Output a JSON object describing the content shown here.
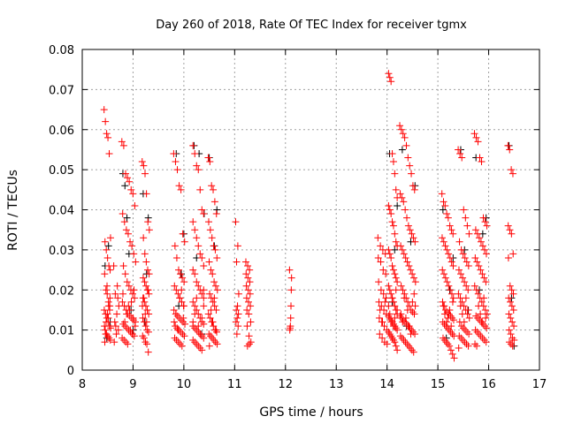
{
  "chart_data": {
    "type": "scatter",
    "title": "Day 260 of 2018, Rate Of TEC Index for receiver tgmx",
    "xlabel": "GPS time / hours",
    "ylabel": "ROTI / TECUs",
    "xlim": [
      8,
      17
    ],
    "ylim": [
      0,
      0.08
    ],
    "xticks": [
      "8",
      "9",
      "10",
      "11",
      "12",
      "13",
      "14",
      "15",
      "16",
      "17"
    ],
    "yticks": [
      "0",
      "0.01",
      "0.02",
      "0.03",
      "0.04",
      "0.05",
      "0.06",
      "0.07",
      "0.08"
    ],
    "grid": true,
    "marker": "+",
    "series": [
      {
        "name": "black",
        "color": "#000000",
        "arcs": [
          {
            "x0": 8.45,
            "x1": 8.55,
            "y": [
              0.026,
              0.012,
              0.031,
              0.008
            ]
          },
          {
            "x0": 8.8,
            "x1": 9.0,
            "y": [
              0.049,
              0.046,
              0.038,
              0.029,
              0.015,
              0.01
            ]
          },
          {
            "x0": 9.2,
            "x1": 9.3,
            "y": [
              0.044,
              0.038,
              0.024,
              0.012
            ]
          },
          {
            "x0": 9.85,
            "x1": 10.0,
            "y": [
              0.054,
              0.034,
              0.024,
              0.016
            ]
          },
          {
            "x0": 10.2,
            "x1": 10.4,
            "y": [
              0.056,
              0.054,
              0.039,
              0.028,
              0.009
            ]
          },
          {
            "x0": 10.5,
            "x1": 10.65,
            "y": [
              0.053,
              0.04,
              0.031,
              0.012
            ]
          },
          {
            "x0": 14.05,
            "x1": 14.2,
            "y": [
              0.054,
              0.041,
              0.03,
              0.017
            ]
          },
          {
            "x0": 14.3,
            "x1": 14.55,
            "y": [
              0.055,
              0.046,
              0.032,
              0.011
            ]
          },
          {
            "x0": 15.1,
            "x1": 15.3,
            "y": [
              0.04,
              0.028,
              0.02,
              0.008
            ]
          },
          {
            "x0": 15.45,
            "x1": 15.6,
            "y": [
              0.055,
              0.03,
              0.015
            ]
          },
          {
            "x0": 15.75,
            "x1": 15.95,
            "y": [
              0.053,
              0.038,
              0.034,
              0.02
            ]
          },
          {
            "x0": 16.4,
            "x1": 16.5,
            "y": [
              0.056,
              0.018,
              0.006
            ]
          }
        ]
      },
      {
        "name": "red",
        "color": "#ff0000",
        "arcs": [
          {
            "x0": 8.43,
            "x1": 8.56,
            "y": [
              0.065,
              0.062,
              0.059,
              0.058,
              0.054,
              0.033,
              0.032,
              0.03,
              0.028,
              0.026,
              0.025,
              0.024,
              0.02,
              0.019,
              0.017,
              0.016,
              0.015,
              0.014,
              0.013,
              0.012,
              0.011,
              0.0105,
              0.01,
              0.009,
              0.0085,
              0.008,
              0.0075,
              0.007,
              0.012,
              0.014,
              0.016,
              0.018,
              0.011,
              0.009,
              0.021,
              0.013,
              0.015
            ]
          },
          {
            "x0": 8.62,
            "x1": 8.72,
            "y": [
              0.026,
              0.021,
              0.019,
              0.016,
              0.014,
              0.012,
              0.01,
              0.009,
              0.007,
              0.018,
              0.011
            ]
          },
          {
            "x0": 8.78,
            "x1": 9.05,
            "y": [
              0.057,
              0.056,
              0.049,
              0.048,
              0.047,
              0.045,
              0.044,
              0.041,
              0.039,
              0.037,
              0.035,
              0.034,
              0.032,
              0.031,
              0.029,
              0.027,
              0.026,
              0.024,
              0.022,
              0.021,
              0.02,
              0.019,
              0.018,
              0.017,
              0.016,
              0.015,
              0.014,
              0.0135,
              0.013,
              0.0125,
              0.012,
              0.0115,
              0.011,
              0.0105,
              0.01,
              0.0095,
              0.009,
              0.0085,
              0.008,
              0.0075,
              0.007,
              0.0065,
              0.015,
              0.017,
              0.013,
              0.011,
              0.019,
              0.012,
              0.014,
              0.016,
              0.01,
              0.009,
              0.02
            ]
          },
          {
            "x0": 9.18,
            "x1": 9.32,
            "y": [
              0.052,
              0.051,
              0.049,
              0.044,
              0.037,
              0.035,
              0.033,
              0.029,
              0.027,
              0.025,
              0.024,
              0.023,
              0.022,
              0.021,
              0.02,
              0.019,
              0.018,
              0.017,
              0.016,
              0.015,
              0.014,
              0.013,
              0.012,
              0.011,
              0.01,
              0.0095,
              0.0085,
              0.008,
              0.007,
              0.0065,
              0.0045,
              0.016,
              0.018,
              0.014,
              0.012,
              0.02
            ]
          },
          {
            "x0": 9.8,
            "x1": 10.02,
            "y": [
              0.054,
              0.052,
              0.05,
              0.046,
              0.045,
              0.034,
              0.032,
              0.031,
              0.028,
              0.025,
              0.024,
              0.023,
              0.022,
              0.021,
              0.02,
              0.019,
              0.018,
              0.017,
              0.016,
              0.015,
              0.014,
              0.0135,
              0.013,
              0.0125,
              0.012,
              0.0115,
              0.011,
              0.0105,
              0.01,
              0.0095,
              0.009,
              0.0085,
              0.008,
              0.0075,
              0.007,
              0.0065,
              0.006,
              0.016,
              0.012,
              0.014,
              0.01,
              0.018,
              0.02,
              0.013
            ]
          },
          {
            "x0": 10.18,
            "x1": 10.42,
            "y": [
              0.056,
              0.054,
              0.051,
              0.05,
              0.045,
              0.04,
              0.039,
              0.037,
              0.035,
              0.033,
              0.031,
              0.029,
              0.028,
              0.026,
              0.025,
              0.024,
              0.022,
              0.021,
              0.02,
              0.019,
              0.018,
              0.017,
              0.016,
              0.015,
              0.014,
              0.013,
              0.012,
              0.0115,
              0.011,
              0.0105,
              0.01,
              0.0095,
              0.009,
              0.0085,
              0.008,
              0.0075,
              0.007,
              0.0065,
              0.006,
              0.0055,
              0.005,
              0.016,
              0.012,
              0.014,
              0.018,
              0.011,
              0.009,
              0.013,
              0.02
            ]
          },
          {
            "x0": 10.48,
            "x1": 10.66,
            "y": [
              0.053,
              0.052,
              0.046,
              0.045,
              0.042,
              0.039,
              0.037,
              0.035,
              0.033,
              0.031,
              0.03,
              0.028,
              0.027,
              0.025,
              0.024,
              0.022,
              0.021,
              0.02,
              0.019,
              0.018,
              0.017,
              0.016,
              0.015,
              0.014,
              0.013,
              0.012,
              0.011,
              0.01,
              0.0095,
              0.009,
              0.0085,
              0.008,
              0.0075,
              0.007,
              0.0065,
              0.006,
              0.015,
              0.012,
              0.018,
              0.01
            ]
          },
          {
            "x0": 11.02,
            "x1": 11.08,
            "y": [
              0.037,
              0.031,
              0.027,
              0.019,
              0.016,
              0.015,
              0.014,
              0.013,
              0.012,
              0.011,
              0.009
            ]
          },
          {
            "x0": 11.22,
            "x1": 11.32,
            "y": [
              0.027,
              0.026,
              0.025,
              0.024,
              0.023,
              0.022,
              0.021,
              0.02,
              0.019,
              0.018,
              0.017,
              0.016,
              0.015,
              0.014,
              0.012,
              0.011,
              0.0085,
              0.007,
              0.006,
              0.0065
            ]
          },
          {
            "x0": 12.08,
            "x1": 12.12,
            "y": [
              0.025,
              0.023,
              0.02,
              0.016,
              0.013,
              0.011,
              0.0105,
              0.01
            ]
          },
          {
            "x0": 13.82,
            "x1": 14.0,
            "y": [
              0.033,
              0.031,
              0.03,
              0.029,
              0.028,
              0.027,
              0.025,
              0.024,
              0.022,
              0.02,
              0.019,
              0.018,
              0.017,
              0.016,
              0.015,
              0.014,
              0.013,
              0.012,
              0.011,
              0.01,
              0.009,
              0.008,
              0.007,
              0.0065,
              0.015,
              0.012,
              0.017
            ]
          },
          {
            "x0": 14.03,
            "x1": 14.22,
            "y": [
              0.074,
              0.073,
              0.072,
              0.054,
              0.052,
              0.049,
              0.045,
              0.043,
              0.041,
              0.04,
              0.039,
              0.037,
              0.036,
              0.034,
              0.032,
              0.031,
              0.03,
              0.029,
              0.028,
              0.026,
              0.025,
              0.024,
              0.023,
              0.022,
              0.021,
              0.02,
              0.019,
              0.018,
              0.017,
              0.016,
              0.015,
              0.014,
              0.0135,
              0.013,
              0.0125,
              0.012,
              0.0115,
              0.011,
              0.0105,
              0.01,
              0.0095,
              0.009,
              0.0085,
              0.008,
              0.0075,
              0.007,
              0.006,
              0.005,
              0.016,
              0.014,
              0.012,
              0.018,
              0.011,
              0.013,
              0.02,
              0.015
            ]
          },
          {
            "x0": 14.25,
            "x1": 14.56,
            "y": [
              0.061,
              0.06,
              0.059,
              0.058,
              0.056,
              0.053,
              0.051,
              0.049,
              0.046,
              0.045,
              0.044,
              0.043,
              0.042,
              0.04,
              0.038,
              0.036,
              0.035,
              0.034,
              0.033,
              0.032,
              0.031,
              0.03,
              0.029,
              0.028,
              0.027,
              0.026,
              0.025,
              0.024,
              0.023,
              0.022,
              0.021,
              0.02,
              0.019,
              0.018,
              0.017,
              0.016,
              0.015,
              0.0145,
              0.014,
              0.0135,
              0.013,
              0.0125,
              0.012,
              0.0115,
              0.011,
              0.0105,
              0.01,
              0.0095,
              0.009,
              0.0085,
              0.008,
              0.0075,
              0.007,
              0.0065,
              0.006,
              0.0055,
              0.005,
              0.0045,
              0.016,
              0.014,
              0.012,
              0.018,
              0.013,
              0.015,
              0.011,
              0.009,
              0.017,
              0.019
            ]
          },
          {
            "x0": 15.08,
            "x1": 15.32,
            "y": [
              0.044,
              0.042,
              0.041,
              0.039,
              0.038,
              0.036,
              0.035,
              0.034,
              0.033,
              0.032,
              0.031,
              0.03,
              0.029,
              0.028,
              0.027,
              0.026,
              0.025,
              0.024,
              0.023,
              0.022,
              0.021,
              0.02,
              0.019,
              0.018,
              0.017,
              0.016,
              0.015,
              0.0145,
              0.014,
              0.0135,
              0.013,
              0.0125,
              0.012,
              0.0115,
              0.011,
              0.0105,
              0.01,
              0.0095,
              0.009,
              0.0085,
              0.008,
              0.0075,
              0.007,
              0.0065,
              0.006,
              0.005,
              0.004,
              0.003,
              0.016,
              0.014,
              0.012,
              0.013,
              0.015,
              0.011,
              0.017
            ]
          },
          {
            "x0": 15.4,
            "x1": 15.62,
            "y": [
              0.055,
              0.054,
              0.053,
              0.04,
              0.038,
              0.036,
              0.034,
              0.032,
              0.03,
              0.029,
              0.028,
              0.027,
              0.026,
              0.025,
              0.024,
              0.023,
              0.022,
              0.021,
              0.02,
              0.019,
              0.018,
              0.017,
              0.016,
              0.015,
              0.014,
              0.013,
              0.012,
              0.011,
              0.0105,
              0.01,
              0.0095,
              0.009,
              0.0085,
              0.008,
              0.0075,
              0.007,
              0.0065,
              0.006,
              0.0055,
              0.016,
              0.014,
              0.012,
              0.018,
              0.015
            ]
          },
          {
            "x0": 15.72,
            "x1": 15.97,
            "y": [
              0.059,
              0.058,
              0.057,
              0.053,
              0.052,
              0.038,
              0.037,
              0.036,
              0.035,
              0.034,
              0.033,
              0.032,
              0.031,
              0.03,
              0.029,
              0.028,
              0.027,
              0.026,
              0.025,
              0.024,
              0.023,
              0.022,
              0.021,
              0.02,
              0.019,
              0.018,
              0.017,
              0.016,
              0.015,
              0.014,
              0.0135,
              0.013,
              0.0125,
              0.012,
              0.0115,
              0.011,
              0.0105,
              0.01,
              0.0095,
              0.009,
              0.0085,
              0.008,
              0.0075,
              0.007,
              0.0065,
              0.006,
              0.016,
              0.014,
              0.012,
              0.018,
              0.013
            ]
          },
          {
            "x0": 16.38,
            "x1": 16.5,
            "y": [
              0.056,
              0.055,
              0.05,
              0.049,
              0.036,
              0.035,
              0.034,
              0.029,
              0.028,
              0.021,
              0.02,
              0.019,
              0.018,
              0.017,
              0.016,
              0.015,
              0.014,
              0.013,
              0.012,
              0.011,
              0.01,
              0.009,
              0.008,
              0.0075,
              0.007,
              0.0065,
              0.006
            ]
          }
        ]
      }
    ]
  }
}
